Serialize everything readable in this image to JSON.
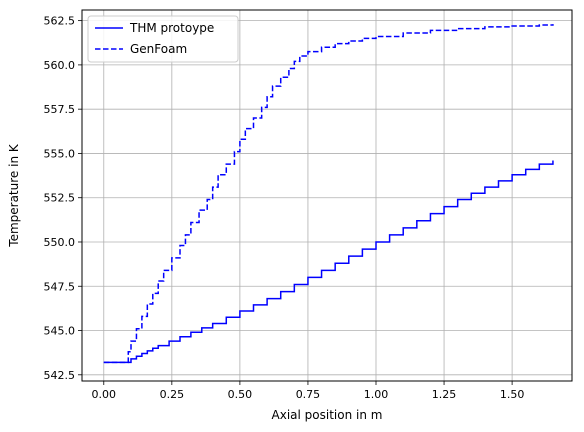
{
  "chart_data": {
    "type": "line",
    "title": "",
    "xlabel": "Axial position in m",
    "ylabel": "Temperature in K",
    "xlim": [
      -0.08,
      1.72
    ],
    "ylim": [
      542.15,
      563.1
    ],
    "xticks": [
      0.0,
      0.25,
      0.5,
      0.75,
      1.0,
      1.25,
      1.5
    ],
    "xtick_labels": [
      "0.00",
      "0.25",
      "0.50",
      "0.75",
      "1.00",
      "1.25",
      "1.50"
    ],
    "yticks": [
      542.5,
      545.0,
      547.5,
      550.0,
      552.5,
      555.0,
      557.5,
      560.0,
      562.5
    ],
    "ytick_labels": [
      "542.5",
      "545.0",
      "547.5",
      "550.0",
      "552.5",
      "555.0",
      "557.5",
      "560.0",
      "562.5"
    ],
    "grid": true,
    "legend_position": "top-left",
    "series": [
      {
        "name": "THM protoype",
        "style": "solid",
        "color": "#0000ff",
        "step": true,
        "x": [
          0.0,
          0.09,
          0.1,
          0.12,
          0.14,
          0.16,
          0.18,
          0.2,
          0.24,
          0.28,
          0.32,
          0.36,
          0.4,
          0.45,
          0.5,
          0.55,
          0.6,
          0.65,
          0.7,
          0.75,
          0.8,
          0.85,
          0.9,
          0.95,
          1.0,
          1.05,
          1.1,
          1.15,
          1.2,
          1.25,
          1.3,
          1.35,
          1.4,
          1.45,
          1.5,
          1.55,
          1.6,
          1.65
        ],
        "y": [
          543.2,
          543.2,
          543.4,
          543.55,
          543.7,
          543.85,
          544.0,
          544.15,
          544.4,
          544.65,
          544.9,
          545.15,
          545.4,
          545.75,
          546.1,
          546.45,
          546.8,
          547.2,
          547.6,
          548.0,
          548.4,
          548.8,
          549.2,
          549.6,
          550.0,
          550.4,
          550.8,
          551.2,
          551.6,
          552.0,
          552.4,
          552.75,
          553.1,
          553.45,
          553.8,
          554.1,
          554.4,
          554.6
        ]
      },
      {
        "name": "GenFoam",
        "style": "dashed",
        "color": "#0000ff",
        "step": true,
        "x": [
          0.0,
          0.09,
          0.1,
          0.12,
          0.14,
          0.16,
          0.18,
          0.2,
          0.22,
          0.25,
          0.28,
          0.3,
          0.32,
          0.35,
          0.38,
          0.4,
          0.42,
          0.45,
          0.48,
          0.5,
          0.52,
          0.55,
          0.58,
          0.6,
          0.62,
          0.65,
          0.68,
          0.7,
          0.72,
          0.75,
          0.8,
          0.85,
          0.9,
          0.95,
          1.0,
          1.1,
          1.2,
          1.3,
          1.4,
          1.5,
          1.6,
          1.65
        ],
        "y": [
          543.2,
          543.8,
          544.4,
          545.1,
          545.8,
          546.5,
          547.1,
          547.8,
          548.4,
          549.1,
          549.8,
          550.4,
          551.1,
          551.8,
          552.4,
          553.1,
          553.8,
          554.4,
          555.1,
          555.8,
          556.4,
          557.0,
          557.6,
          558.2,
          558.8,
          559.3,
          559.8,
          560.2,
          560.5,
          560.75,
          561.0,
          561.2,
          561.35,
          561.5,
          561.6,
          561.8,
          561.95,
          562.05,
          562.15,
          562.2,
          562.25,
          562.3
        ]
      }
    ]
  }
}
